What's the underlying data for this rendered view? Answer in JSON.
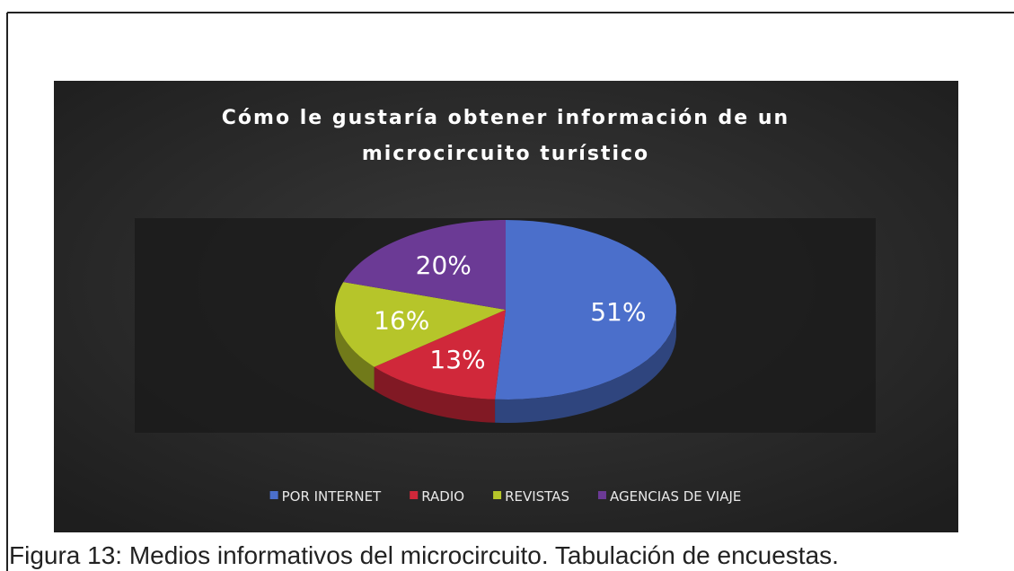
{
  "chart_data": {
    "type": "pie3d",
    "title": [
      "Cómo le gustaría obtener información de un",
      "microcircuito turístico"
    ],
    "categories": [
      "POR INTERNET",
      "RADIO",
      "REVISTAS",
      "AGENCIAS DE VIAJE"
    ],
    "values": [
      51,
      13,
      16,
      20
    ],
    "value_labels": [
      "51%",
      "13%",
      "16%",
      "20%"
    ],
    "colors": [
      "#4b6fcb",
      "#d0283a",
      "#b6c52a",
      "#6b3a95"
    ],
    "legend": "bottom"
  },
  "caption": "Figura 13: Medios informativos del microcircuito. Tabulación de encuestas."
}
